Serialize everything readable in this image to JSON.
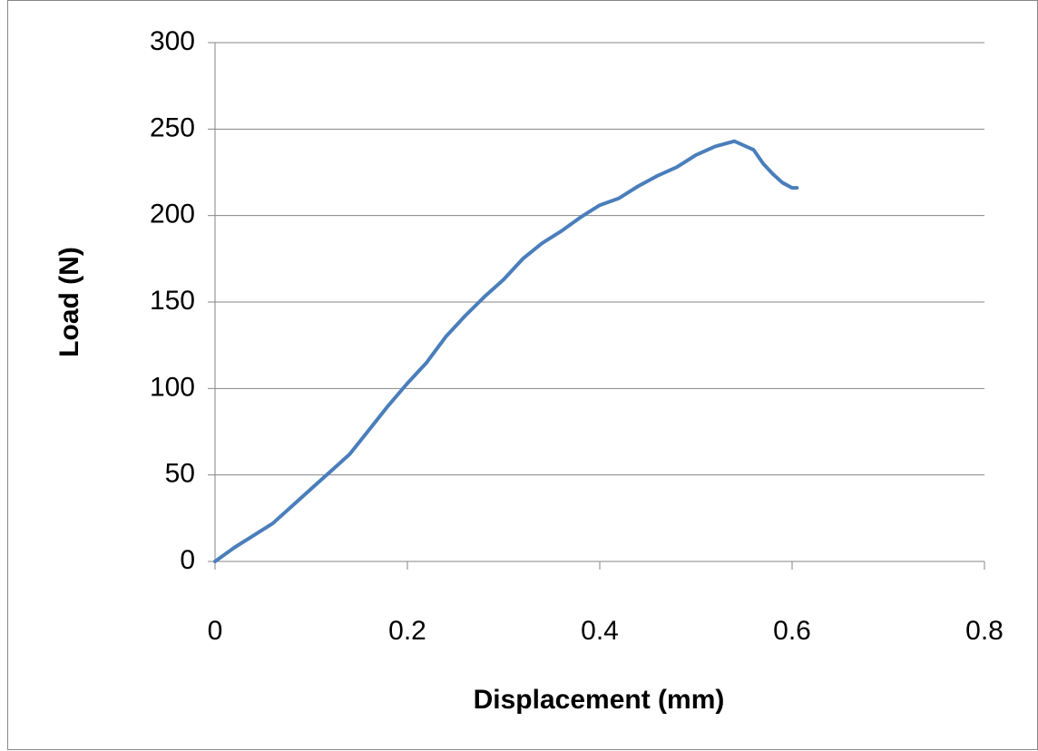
{
  "chart_data": {
    "type": "line",
    "x_label": "Displacement (mm)",
    "y_label": "Load (N)",
    "x": [
      0,
      0.02,
      0.04,
      0.06,
      0.08,
      0.1,
      0.12,
      0.14,
      0.16,
      0.18,
      0.2,
      0.22,
      0.24,
      0.26,
      0.28,
      0.3,
      0.32,
      0.34,
      0.36,
      0.38,
      0.4,
      0.42,
      0.44,
      0.46,
      0.48,
      0.5,
      0.52,
      0.54,
      0.56,
      0.57,
      0.58,
      0.59,
      0.6,
      0.605
    ],
    "series": [
      {
        "color": "#4a7ebb",
        "values": [
          0,
          8,
          15,
          22,
          32,
          42,
          52,
          62,
          76,
          90,
          103,
          115,
          130,
          142,
          153,
          163,
          175,
          184,
          191,
          199,
          206,
          210,
          217,
          223,
          228,
          235,
          240,
          243,
          238,
          230,
          224,
          219,
          216,
          216
        ]
      }
    ],
    "xlim": [
      0,
      0.8
    ],
    "xticks": [
      0,
      0.2,
      0.4,
      0.6,
      0.8
    ],
    "ylim": [
      0,
      300
    ],
    "yticks": [
      0,
      50,
      100,
      150,
      200,
      250,
      300
    ],
    "grid": true
  }
}
